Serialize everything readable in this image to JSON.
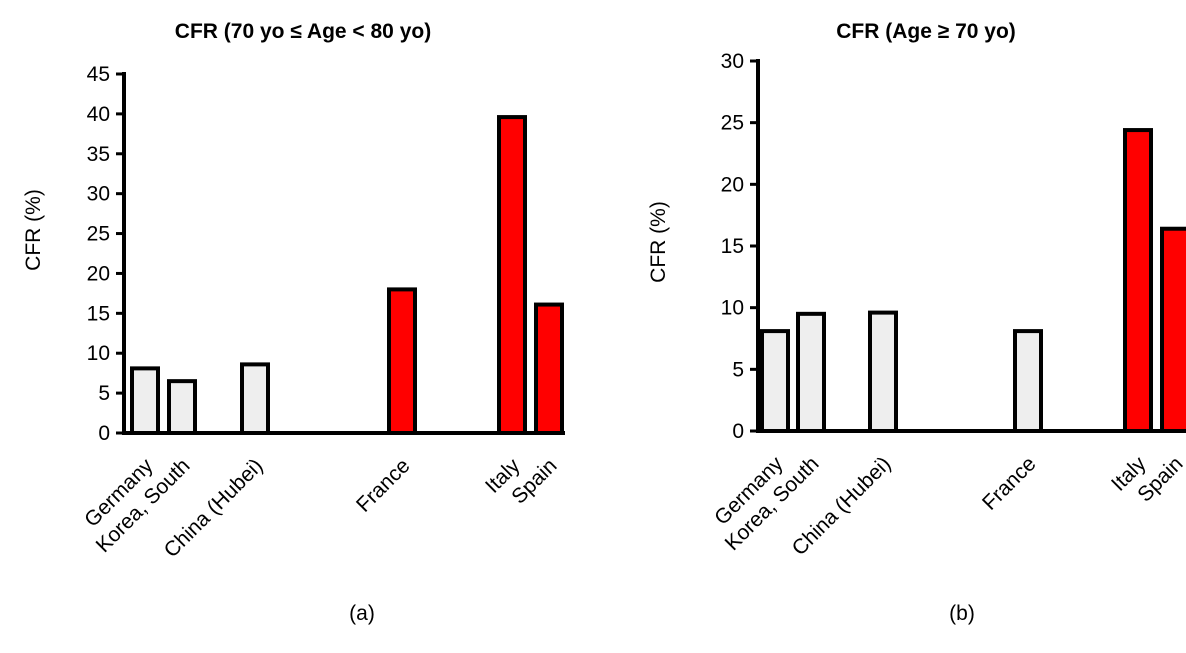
{
  "colors": {
    "normal": "#eeeeee",
    "highlight": "#ff0000",
    "stroke": "#000000"
  },
  "chart_data": [
    {
      "type": "bar",
      "title": "CFR (70 yo ≤ Age < 80 yo)",
      "ylabel": "CFR (%)",
      "panel_label": "(a)",
      "ylim": [
        0,
        45
      ],
      "yticks": [
        0,
        5,
        10,
        15,
        20,
        25,
        30,
        35,
        40,
        45
      ],
      "bars": [
        {
          "label": "Germany",
          "value": 8.1,
          "highlight": false
        },
        {
          "label": "Korea, South",
          "value": 6.5,
          "highlight": false
        },
        {
          "label": "China (Hubei)",
          "value": 8.6,
          "highlight": false
        },
        {
          "label": "France",
          "value": 18.0,
          "highlight": true
        },
        {
          "label": "Italy",
          "value": 39.6,
          "highlight": true
        },
        {
          "label": "Spain",
          "value": 16.1,
          "highlight": true
        }
      ]
    },
    {
      "type": "bar",
      "title": "CFR (Age ≥ 70 yo)",
      "ylabel": "CFR (%)",
      "panel_label": "(b)",
      "ylim": [
        0,
        30
      ],
      "yticks": [
        0,
        5,
        10,
        15,
        20,
        25,
        30
      ],
      "bars": [
        {
          "label": "Germany",
          "value": 8.1,
          "highlight": false
        },
        {
          "label": "Korea, South",
          "value": 9.5,
          "highlight": false
        },
        {
          "label": "China (Hubei)",
          "value": 9.6,
          "highlight": false
        },
        {
          "label": "France",
          "value": 8.1,
          "highlight": false
        },
        {
          "label": "Italy",
          "value": 24.4,
          "highlight": true
        },
        {
          "label": "Spain",
          "value": 16.4,
          "highlight": true
        }
      ]
    }
  ]
}
